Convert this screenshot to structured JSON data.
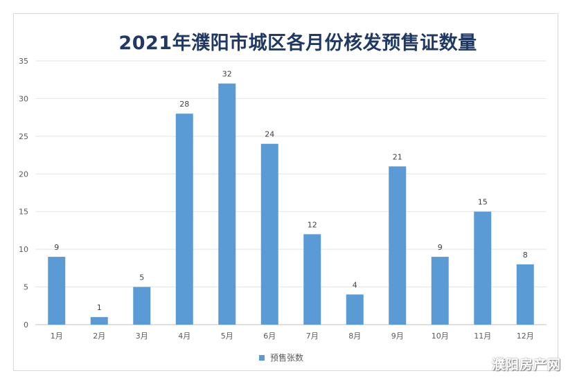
{
  "chart_data": {
    "type": "bar",
    "title": "2021年濮阳市城区各月份核发预售证数量",
    "categories": [
      "1月",
      "2月",
      "3月",
      "4月",
      "5月",
      "6月",
      "7月",
      "8月",
      "9月",
      "10月",
      "11月",
      "12月"
    ],
    "series": [
      {
        "name": "预售张数",
        "values": [
          9,
          1,
          5,
          28,
          32,
          24,
          12,
          4,
          21,
          9,
          15,
          8
        ],
        "color": "#5b9bd5"
      }
    ],
    "xlabel": "",
    "ylabel": "",
    "ylim": [
      0,
      35
    ],
    "yticks": [
      0,
      5,
      10,
      15,
      20,
      25,
      30,
      35
    ],
    "grid": true,
    "legend_position": "bottom",
    "data_labels": true
  },
  "watermark": "濮阳房产网"
}
